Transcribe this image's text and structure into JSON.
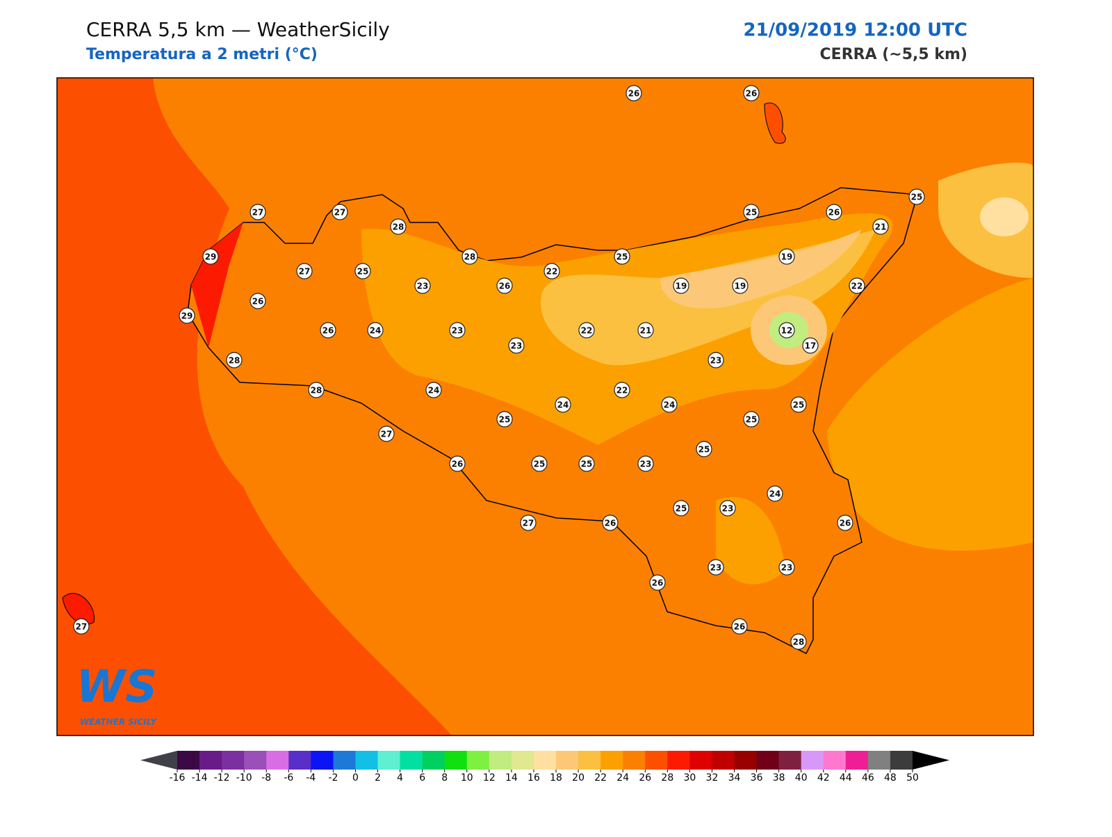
{
  "header": {
    "title": "CERRA 5,5 km — WeatherSicily",
    "subtitle": "Temperatura a 2 metri (°C)",
    "datetime": "21/09/2019 12:00 UTC",
    "model": "CERRA (~5,5 km)"
  },
  "logo": {
    "mark": "WS",
    "name": "WEATHER SICILY"
  },
  "stations": [
    26,
    26,
    27,
    27,
    28,
    25,
    26,
    25,
    21,
    29,
    27,
    25,
    28,
    25,
    19,
    22,
    23,
    26,
    19,
    19,
    22,
    26,
    29,
    26,
    24,
    23,
    22,
    21,
    12,
    17,
    23,
    28,
    23,
    28,
    24,
    22,
    24,
    24,
    25,
    25,
    25,
    27,
    25,
    26,
    25,
    25,
    23,
    24,
    25,
    23,
    27,
    26,
    26,
    23,
    23,
    26,
    26,
    28,
    27
  ],
  "colorbar": {
    "ticks": [
      -16,
      -14,
      -12,
      -10,
      -8,
      -6,
      -4,
      -2,
      0,
      2,
      4,
      6,
      8,
      10,
      12,
      14,
      16,
      18,
      20,
      22,
      24,
      26,
      28,
      30,
      32,
      34,
      36,
      38,
      40,
      42,
      44,
      46,
      48,
      50
    ],
    "colors": [
      "#3b0a45",
      "#6a1b8a",
      "#7b2fa0",
      "#9b4fb8",
      "#d86de6",
      "#5a2ec8",
      "#0a14f5",
      "#1e78d8",
      "#12c0e6",
      "#5ef0d0",
      "#00e0a0",
      "#00d060",
      "#10e010",
      "#7ef040",
      "#c0ec80",
      "#e0e890",
      "#ffe0a0",
      "#fcc878",
      "#fcc040",
      "#fca000",
      "#fc8000",
      "#fc5000",
      "#fc1a00",
      "#e00000",
      "#c00000",
      "#980000",
      "#700018",
      "#802040",
      "#d898f8",
      "#ff78d0",
      "#f01e96",
      "#808080",
      "#3c3c3c"
    ],
    "under": "#404048",
    "over": "#000000"
  }
}
